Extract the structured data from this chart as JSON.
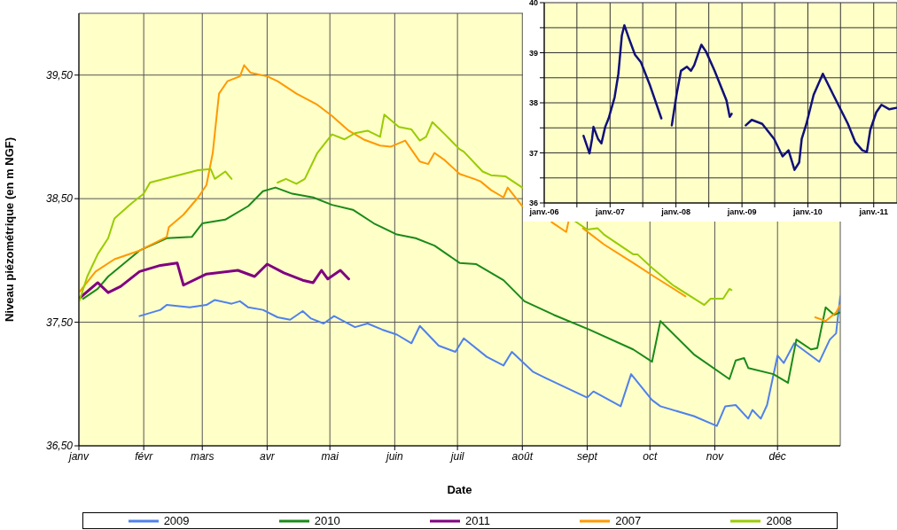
{
  "chart_data": [
    {
      "type": "line",
      "xlabel": "Date",
      "ylabel": "Niveau piézométrique (en m NGF)",
      "xlim": [
        "--01-01",
        "--12-31"
      ],
      "xticks": [
        {
          "value": "--01-01",
          "label": "janv"
        },
        {
          "value": "--02-01",
          "label": "févr"
        },
        {
          "value": "--03-01",
          "label": "mars"
        },
        {
          "value": "--04-01",
          "label": "avr"
        },
        {
          "value": "--05-01",
          "label": "mai"
        },
        {
          "value": "--06-01",
          "label": "juin"
        },
        {
          "value": "--07-01",
          "label": "juil"
        },
        {
          "value": "--08-01",
          "label": "août"
        },
        {
          "value": "--09-01",
          "label": "sept"
        },
        {
          "value": "--10-01",
          "label": "oct"
        },
        {
          "value": "--11-01",
          "label": "nov"
        },
        {
          "value": "--12-01",
          "label": "déc"
        }
      ],
      "ylim": [
        36.5,
        40
      ],
      "yticks": [
        {
          "value": 36.5,
          "label": "36,50"
        },
        {
          "value": 37.5,
          "label": "37,50"
        },
        {
          "value": 38.5,
          "label": "38,50"
        },
        {
          "value": 39.5,
          "label": "39,50"
        }
      ],
      "grid": true,
      "legend": "bottom",
      "series": [
        {
          "name": "2009",
          "color": "#4f81ec",
          "x": [
            "--01-30",
            "--02-09",
            "--02-12",
            "--02-23",
            "--03-03",
            "--03-07",
            "--03-15",
            "--03-19",
            "--03-23",
            "--03-30",
            "--04-06",
            "--04-12",
            "--04-18",
            "--04-22",
            "--04-28",
            "--05-03",
            "--05-13",
            "--05-19",
            "--05-26",
            "--06-02",
            "--06-09",
            "--06-13",
            "--06-22",
            "--06-30",
            "--07-04",
            "--07-15",
            "--07-23",
            "--07-27",
            "--08-06",
            "--08-12",
            "--09-01",
            "--09-04",
            "--09-17",
            "--09-22",
            "--10-02",
            "--10-06",
            "--10-22",
            "--11-02",
            "--11-06",
            "--11-11",
            "--11-17",
            "--11-19",
            "--11-23",
            "--11-26",
            "--12-01",
            "--12-04",
            "--12-09",
            "--12-21",
            "--12-26",
            "--12-29",
            "--12-31"
          ],
          "values": [
            37.55,
            37.6,
            37.64,
            37.62,
            37.64,
            37.68,
            37.65,
            37.67,
            37.62,
            37.6,
            37.54,
            37.52,
            37.59,
            37.53,
            37.49,
            37.55,
            37.46,
            37.49,
            37.44,
            37.4,
            37.33,
            37.47,
            37.31,
            37.26,
            37.37,
            37.22,
            37.15,
            37.26,
            37.1,
            37.05,
            36.89,
            36.94,
            36.82,
            37.08,
            36.87,
            36.82,
            36.74,
            36.66,
            36.82,
            36.83,
            36.72,
            36.79,
            36.72,
            36.83,
            37.23,
            37.17,
            37.33,
            37.18,
            37.36,
            37.41,
            37.71
          ]
        },
        {
          "name": "2010",
          "color": "#1a8a1a",
          "x": [
            "--01-03",
            "--01-10",
            "--01-15",
            "--01-30",
            "--02-12",
            "--02-24",
            "--03-01",
            "--03-12",
            "--03-23",
            "--03-30",
            "--04-05",
            "--04-13",
            "--04-23",
            "--05-02",
            "--05-12",
            "--05-22",
            "--06-02",
            "--06-11",
            "--06-20",
            "--07-02",
            "--07-10",
            "--07-23",
            "--08-02",
            "--08-16",
            "--09-02",
            "--09-23",
            "--10-02",
            "--10-06",
            "--10-22",
            "--11-08",
            "--11-11",
            "--11-15",
            "--11-17",
            "--11-29",
            "--12-06",
            "--12-10",
            "--12-17",
            "--12-20",
            "--12-24",
            "--12-28",
            "--12-31"
          ],
          "values": [
            37.69,
            37.77,
            37.87,
            38.08,
            38.18,
            38.19,
            38.3,
            38.33,
            38.44,
            38.56,
            38.59,
            38.54,
            38.51,
            38.45,
            38.41,
            38.3,
            38.21,
            38.18,
            38.12,
            37.98,
            37.97,
            37.84,
            37.67,
            37.56,
            37.44,
            37.28,
            37.18,
            37.51,
            37.24,
            37.04,
            37.19,
            37.21,
            37.13,
            37.08,
            37.01,
            37.36,
            37.28,
            37.29,
            37.62,
            37.56,
            37.58
          ]
        },
        {
          "name": "2011",
          "color": "#800080",
          "x": [
            "--01-01",
            "--01-10",
            "--01-15",
            "--01-21",
            "--01-30",
            "--02-09",
            "--02-17",
            "--02-20",
            "--03-03",
            "--03-18",
            "--03-26",
            "--04-01",
            "--04-09",
            "--04-18",
            "--04-23",
            "--04-27",
            "--04-30",
            "--05-06",
            "--05-10"
          ],
          "values": [
            37.69,
            37.82,
            37.74,
            37.79,
            37.91,
            37.96,
            37.98,
            37.8,
            37.89,
            37.92,
            37.87,
            37.97,
            37.9,
            37.84,
            37.82,
            37.92,
            37.85,
            37.92,
            37.85
          ]
        },
        {
          "name": "2007",
          "color": "#ff9900",
          "x": [
            "--01-01",
            "--01-09",
            "--01-18",
            "--01-30",
            "--02-12",
            "--02-13",
            "--02-20",
            "--02-27",
            "--03-03",
            "--03-06",
            "--03-09",
            "--03-13",
            "--03-19",
            "--03-21",
            "--03-24",
            "--04-01",
            "--04-06",
            "--04-15",
            "--04-25",
            "--05-02",
            "--05-10",
            "--05-17",
            "--05-25",
            "--05-30",
            "--06-06",
            "--06-13",
            "--06-17",
            "--06-20",
            "--06-25",
            "--07-02",
            "--07-09",
            "--07-12",
            "--07-17",
            "--07-23",
            "--07-25",
            "--08-01",
            "--08-07",
            "--08-15",
            "--08-22",
            "--08-23",
            "--08-27",
            "--08-30",
            "--09-09",
            "--09-23",
            "--10-03",
            "--10-18",
            "--10-28",
            "--12-19",
            "--12-24",
            "--12-29",
            "--12-31"
          ],
          "values": [
            37.74,
            37.91,
            38.01,
            38.08,
            38.19,
            38.27,
            38.37,
            38.51,
            38.61,
            38.87,
            39.35,
            39.45,
            39.49,
            39.58,
            39.52,
            39.49,
            39.45,
            39.35,
            39.26,
            39.17,
            39.05,
            38.98,
            38.93,
            38.92,
            38.97,
            38.8,
            38.78,
            38.87,
            38.81,
            38.7,
            38.66,
            38.64,
            38.57,
            38.51,
            38.59,
            38.44,
            null,
            38.31,
            38.23,
            38.31,
            null,
            38.26,
            38.13,
            37.98,
            37.87,
            37.71,
            null,
            37.54,
            37.51,
            37.58,
            37.64
          ]
        },
        {
          "name": "2008",
          "color": "#99cc00",
          "x": [
            "--01-01",
            "--01-05",
            "--01-10",
            "--01-15",
            "--01-18",
            "--01-26",
            "--02-01",
            "--02-04",
            "--02-13",
            "--02-20",
            "--02-27",
            "--03-05",
            "--03-07",
            "--03-12",
            "--03-15",
            "--03-22",
            "--04-06",
            "--04-10",
            "--04-15",
            "--04-19",
            "--04-25",
            "--05-02",
            "--05-08",
            "--05-13",
            "--05-19",
            "--05-25",
            "--05-27",
            "--06-03",
            "--06-09",
            "--06-13",
            "--06-16",
            "--06-19",
            "--06-25",
            "--07-02",
            "--07-04",
            "--07-13",
            "--07-17",
            "--07-24",
            "--08-01",
            "--08-14",
            "--08-26",
            "--09-01",
            "--09-06",
            "--09-09",
            "--09-23",
            "--09-25",
            "--10-02",
            "--10-12",
            "--10-27",
            "--10-30",
            "--11-05",
            "--11-08",
            "--11-09"
          ],
          "values": [
            37.66,
            37.87,
            38.05,
            38.18,
            38.34,
            38.46,
            38.54,
            38.63,
            38.67,
            38.7,
            38.73,
            38.74,
            38.66,
            38.72,
            38.66,
            null,
            38.63,
            38.66,
            38.62,
            38.66,
            38.87,
            39.02,
            38.98,
            39.03,
            39.05,
            39.0,
            39.18,
            39.08,
            39.06,
            38.97,
            39.0,
            39.12,
            39.02,
            38.9,
            38.88,
            38.72,
            38.69,
            38.68,
            38.59,
            null,
            38.32,
            38.25,
            38.26,
            38.21,
            38.05,
            38.05,
            37.94,
            37.8,
            37.64,
            37.69,
            37.69,
            37.77,
            37.76
          ]
        }
      ]
    },
    {
      "type": "line",
      "xlim": [
        "2006-01-01",
        "2011-05-10"
      ],
      "xticks": [
        {
          "value": "2006-01-01",
          "label": "janv.-06"
        },
        {
          "value": "2006-07-01",
          "label": null
        },
        {
          "value": "2007-01-01",
          "label": "janv.-07"
        },
        {
          "value": "2007-07-01",
          "label": null
        },
        {
          "value": "2008-01-01",
          "label": "janv.-08"
        },
        {
          "value": "2008-07-01",
          "label": null
        },
        {
          "value": "2009-01-01",
          "label": "janv.-09"
        },
        {
          "value": "2009-07-01",
          "label": null
        },
        {
          "value": "2010-01-01",
          "label": "janv.-10"
        },
        {
          "value": "2010-07-01",
          "label": null
        },
        {
          "value": "2011-01-01",
          "label": "janv.-11"
        }
      ],
      "ylim": [
        36,
        40
      ],
      "yticks": [
        36,
        {
          "value": 36.5,
          "label": null
        },
        37,
        {
          "value": 37.5,
          "label": null
        },
        38,
        {
          "value": 38.5,
          "label": null
        },
        39,
        {
          "value": 39.5,
          "label": null
        },
        40
      ],
      "grid": true,
      "series": [
        {
          "color": "#10107a",
          "x": [
            "2006-08-07",
            "2006-09-09",
            "2006-09-23",
            "2006-10-01",
            "2006-10-26",
            "2006-11-14",
            "2006-12-05",
            "2006-12-24",
            "2007-01-26",
            "2007-02-16",
            "2007-03-07",
            "2007-03-21",
            "2007-04-16",
            "2007-05-19",
            "2007-06-21",
            "2007-08-11",
            "2007-10-12",
            "2007-11-20",
            "2007-12-09",
            "2008-01-04",
            "2008-01-29",
            "2008-03-02",
            "2008-03-24",
            "2008-04-11",
            "2008-05-07",
            "2008-05-21",
            "2008-06-16",
            "2008-08-02",
            "2008-10-07",
            "2008-10-25",
            "2008-11-05",
            "2008-12-15",
            "2009-01-22",
            "2009-02-24",
            "2009-04-23",
            "2009-06-28",
            "2009-08-14",
            "2009-09-16",
            "2009-10-19",
            "2009-11-14",
            "2009-11-28",
            "2009-12-24",
            "2010-02-02",
            "2010-03-25",
            "2010-05-22",
            "2010-08-11",
            "2010-09-20",
            "2010-10-30",
            "2010-11-24",
            "2010-12-13",
            "2011-01-15",
            "2011-02-13",
            "2011-03-29",
            "2011-05-08"
          ],
          "values": [
            37.34,
            36.99,
            37.28,
            37.52,
            37.28,
            37.19,
            37.52,
            37.69,
            38.11,
            38.58,
            39.34,
            39.55,
            39.28,
            38.96,
            38.81,
            38.34,
            37.69,
            null,
            37.55,
            38.16,
            38.64,
            38.72,
            38.64,
            38.75,
            39.02,
            39.16,
            39.02,
            38.64,
            38.05,
            37.72,
            37.78,
            null,
            37.55,
            37.66,
            37.58,
            37.28,
            36.93,
            37.05,
            36.66,
            36.81,
            37.28,
            37.58,
            38.16,
            38.58,
            38.16,
            37.58,
            37.22,
            37.05,
            37.02,
            37.46,
            37.81,
            37.96,
            37.87,
            37.9
          ]
        }
      ]
    }
  ]
}
